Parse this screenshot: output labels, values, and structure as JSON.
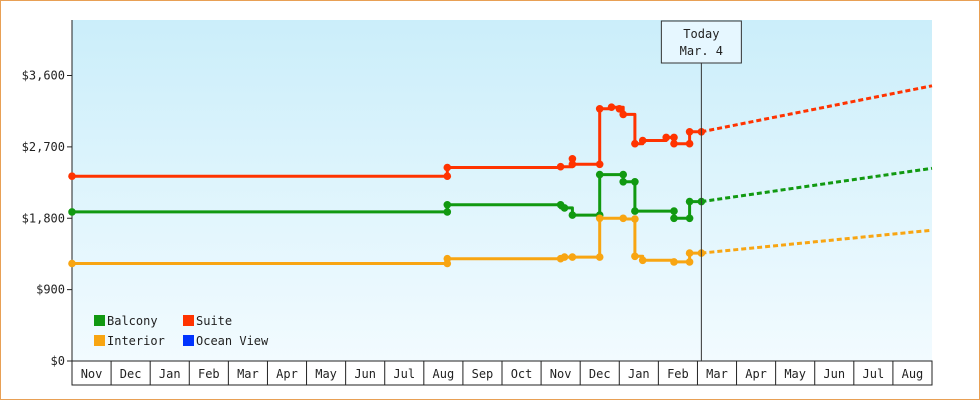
{
  "chart_data": {
    "type": "line",
    "title": "",
    "xlabel": "",
    "ylabel": "",
    "ylim": [
      0,
      4300
    ],
    "y_ticks": [
      {
        "value": 0,
        "label": "$0"
      },
      {
        "value": 900,
        "label": "$900"
      },
      {
        "value": 1800,
        "label": "$1,800"
      },
      {
        "value": 2700,
        "label": "$2,700"
      },
      {
        "value": 3600,
        "label": "$3,600"
      }
    ],
    "months": [
      "Nov",
      "Dec",
      "Jan",
      "Feb",
      "Mar",
      "Apr",
      "May",
      "Jun",
      "Jul",
      "Aug",
      "Sep",
      "Oct",
      "Nov",
      "Dec",
      "Jan",
      "Feb",
      "Mar",
      "Apr",
      "May",
      "Jun",
      "Jul",
      "Aug"
    ],
    "xlim": [
      0,
      22
    ],
    "today": {
      "line1": "Today",
      "line2": "Mar. 4",
      "x": 16.1
    },
    "grid": false,
    "legend_position": "bottom-left",
    "series": [
      {
        "name": "Balcony",
        "color": "#119911",
        "points": [
          [
            0,
            1880
          ],
          [
            9.6,
            1880
          ],
          [
            9.6,
            1970
          ],
          [
            12.5,
            1970
          ],
          [
            12.5,
            1930
          ],
          [
            12.8,
            1930
          ],
          [
            12.8,
            1840
          ],
          [
            13.5,
            1840
          ],
          [
            13.5,
            2350
          ],
          [
            14.1,
            2350
          ],
          [
            14.1,
            2260
          ],
          [
            14.4,
            2260
          ],
          [
            14.4,
            1890
          ],
          [
            15.4,
            1890
          ],
          [
            15.4,
            1800
          ],
          [
            15.8,
            1800
          ],
          [
            15.8,
            2010
          ],
          [
            16.1,
            2010
          ]
        ],
        "markers": [
          [
            0,
            1880
          ],
          [
            9.6,
            1880
          ],
          [
            9.6,
            1970
          ],
          [
            12.5,
            1970
          ],
          [
            12.6,
            1930
          ],
          [
            12.8,
            1840
          ],
          [
            13.5,
            1840
          ],
          [
            13.5,
            2350
          ],
          [
            14.1,
            2350
          ],
          [
            14.1,
            2260
          ],
          [
            14.4,
            2260
          ],
          [
            14.4,
            1890
          ],
          [
            15.4,
            1890
          ],
          [
            15.4,
            1800
          ],
          [
            15.8,
            1800
          ],
          [
            15.8,
            2010
          ],
          [
            16.1,
            2010
          ]
        ],
        "forecast": [
          [
            16.1,
            2010
          ],
          [
            22,
            2430
          ]
        ]
      },
      {
        "name": "Suite",
        "color": "#ff3300",
        "points": [
          [
            0,
            2330
          ],
          [
            9.6,
            2330
          ],
          [
            9.6,
            2440
          ],
          [
            12.5,
            2440
          ],
          [
            12.5,
            2450
          ],
          [
            12.8,
            2450
          ],
          [
            12.8,
            2550
          ],
          [
            12.8,
            2480
          ],
          [
            13.5,
            2480
          ],
          [
            13.5,
            3180
          ],
          [
            13.8,
            3180
          ],
          [
            13.8,
            3200
          ],
          [
            14.1,
            3200
          ],
          [
            14.1,
            3110
          ],
          [
            14.4,
            3110
          ],
          [
            14.4,
            2740
          ],
          [
            14.6,
            2740
          ],
          [
            14.6,
            2780
          ],
          [
            15.2,
            2780
          ],
          [
            15.2,
            2820
          ],
          [
            15.4,
            2820
          ],
          [
            15.4,
            2740
          ],
          [
            15.8,
            2740
          ],
          [
            15.8,
            2890
          ],
          [
            16.1,
            2890
          ]
        ],
        "markers": [
          [
            0,
            2330
          ],
          [
            9.6,
            2330
          ],
          [
            9.6,
            2440
          ],
          [
            12.5,
            2450
          ],
          [
            12.8,
            2550
          ],
          [
            12.8,
            2480
          ],
          [
            13.5,
            2480
          ],
          [
            13.5,
            3180
          ],
          [
            13.8,
            3200
          ],
          [
            14.0,
            3180
          ],
          [
            14.1,
            3110
          ],
          [
            14.4,
            2740
          ],
          [
            14.6,
            2780
          ],
          [
            15.2,
            2820
          ],
          [
            15.4,
            2820
          ],
          [
            15.4,
            2740
          ],
          [
            15.8,
            2740
          ],
          [
            15.8,
            2890
          ],
          [
            16.1,
            2890
          ]
        ],
        "forecast": [
          [
            16.1,
            2890
          ],
          [
            22,
            3470
          ]
        ]
      },
      {
        "name": "Interior",
        "color": "#f8a512",
        "points": [
          [
            0,
            1230
          ],
          [
            9.6,
            1230
          ],
          [
            9.6,
            1290
          ],
          [
            12.5,
            1290
          ],
          [
            12.5,
            1310
          ],
          [
            13.5,
            1310
          ],
          [
            13.5,
            1800
          ],
          [
            14.1,
            1800
          ],
          [
            14.1,
            1790
          ],
          [
            14.4,
            1790
          ],
          [
            14.4,
            1320
          ],
          [
            14.6,
            1320
          ],
          [
            14.6,
            1270
          ],
          [
            15.4,
            1270
          ],
          [
            15.4,
            1250
          ],
          [
            15.8,
            1250
          ],
          [
            15.8,
            1360
          ],
          [
            16.1,
            1360
          ]
        ],
        "markers": [
          [
            0,
            1230
          ],
          [
            9.6,
            1230
          ],
          [
            9.6,
            1290
          ],
          [
            12.5,
            1290
          ],
          [
            12.6,
            1310
          ],
          [
            12.8,
            1310
          ],
          [
            13.5,
            1310
          ],
          [
            13.5,
            1800
          ],
          [
            14.1,
            1800
          ],
          [
            14.4,
            1790
          ],
          [
            14.4,
            1320
          ],
          [
            14.6,
            1270
          ],
          [
            15.4,
            1250
          ],
          [
            15.8,
            1250
          ],
          [
            15.8,
            1360
          ],
          [
            16.1,
            1360
          ]
        ],
        "forecast": [
          [
            16.1,
            1360
          ],
          [
            22,
            1650
          ]
        ]
      },
      {
        "name": "Ocean View",
        "color": "#0033ff",
        "points": [],
        "markers": [],
        "forecast": []
      }
    ]
  },
  "legend": [
    {
      "name": "Balcony",
      "color": "#119911"
    },
    {
      "name": "Suite",
      "color": "#ff3300"
    },
    {
      "name": "Interior",
      "color": "#f8a512"
    },
    {
      "name": "Ocean View",
      "color": "#0033ff"
    }
  ]
}
